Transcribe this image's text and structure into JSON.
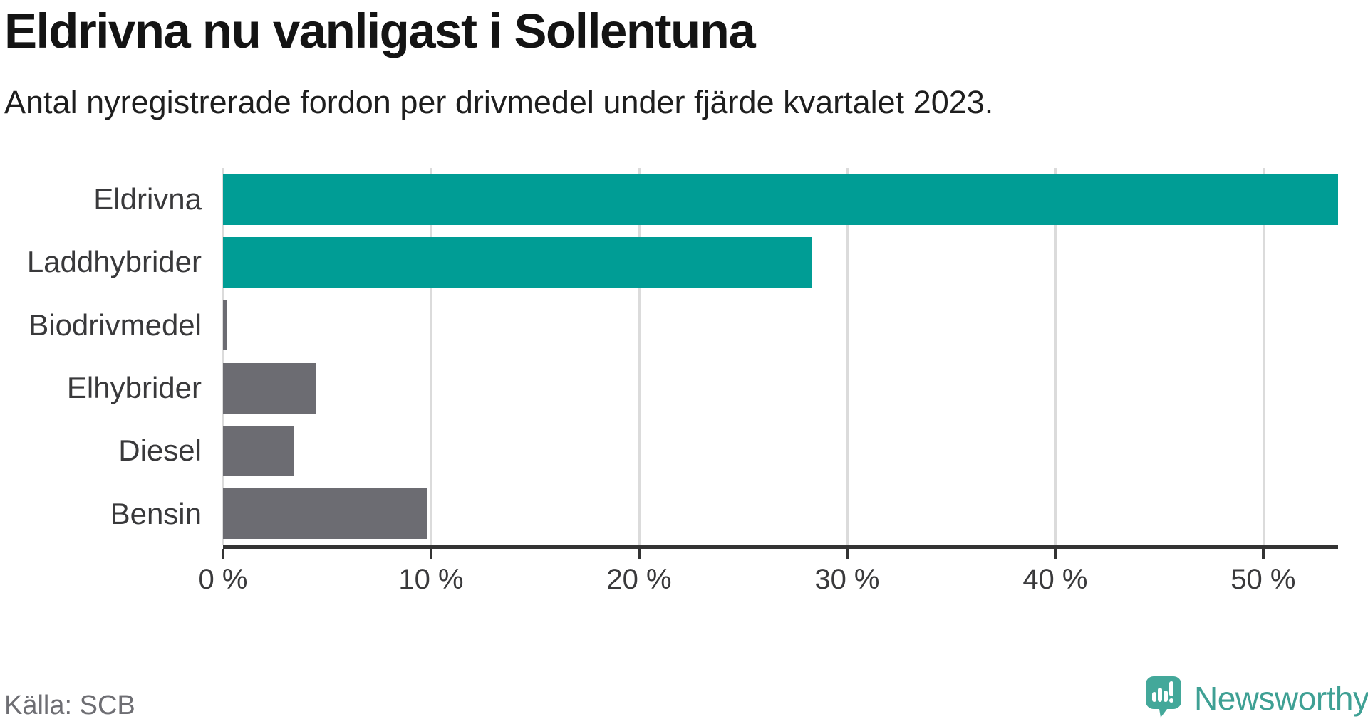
{
  "title": "Eldrivna nu vanligast i Sollentuna",
  "subtitle": "Antal nyregistrerade fordon per drivmedel under fjärde kvartalet 2023.",
  "source": "Källa: SCB",
  "brand": {
    "name": "Newsworthy",
    "icon": "newsworthy-speech-bubble-chart-icon",
    "icon_color": "#43a89a",
    "text_color": "#3fa094"
  },
  "colors": {
    "accent_teal": "#009d95",
    "muted_gray": "#6c6c72",
    "gridline": "#dbdbdb",
    "axis": "#333333",
    "label_text": "#39393b",
    "source_text": "#6e6e73"
  },
  "chart_data": {
    "type": "bar",
    "orientation": "horizontal",
    "title": "Eldrivna nu vanligast i Sollentuna",
    "subtitle": "Antal nyregistrerade fordon per drivmedel under fjärde kvartalet 2023.",
    "categories": [
      "Eldrivna",
      "Laddhybrider",
      "Biodrivmedel",
      "Elhybrider",
      "Diesel",
      "Bensin"
    ],
    "values": [
      53.6,
      28.3,
      0.2,
      4.5,
      3.4,
      9.8
    ],
    "unit": "%",
    "bar_colors": [
      "#009d95",
      "#009d95",
      "#6c6c72",
      "#6c6c72",
      "#6c6c72",
      "#6c6c72"
    ],
    "xtick_values": [
      0,
      10,
      20,
      30,
      40,
      50
    ],
    "xtick_labels": [
      "0 %",
      "10 %",
      "20 %",
      "30 %",
      "40 %",
      "50 %"
    ],
    "xlim": [
      0,
      53.6
    ],
    "grid": true,
    "legend": false,
    "source_label": "Källa: SCB"
  }
}
